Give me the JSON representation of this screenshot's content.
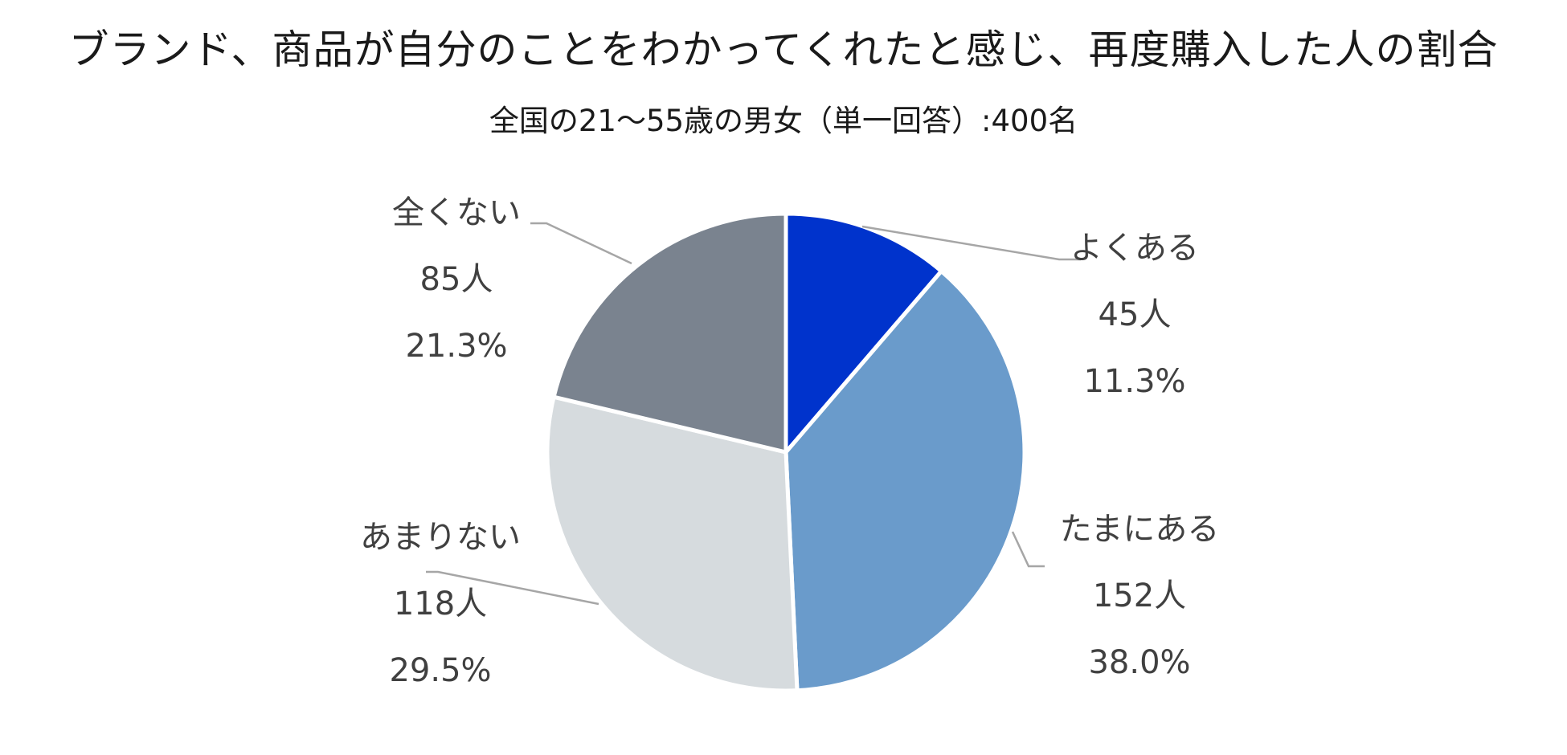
{
  "chart_data": {
    "type": "pie",
    "title": "ブランド、商品が自分のことをわかってくれたと感じ、再度購入した人の割合",
    "subtitle": "全国の21～55歳の男女（単一回答）:400名",
    "slices": [
      {
        "label": "よくある",
        "count": 45,
        "count_text": "45人",
        "percent_text": "11.3%",
        "value": 11.3,
        "color": "#0033cc"
      },
      {
        "label": "たまにある",
        "count": 152,
        "count_text": "152人",
        "percent_text": "38.0%",
        "value": 38.0,
        "color": "#6a9bcb"
      },
      {
        "label": "あまりない",
        "count": 118,
        "count_text": "118人",
        "percent_text": "29.5%",
        "value": 29.5,
        "color": "#d6dbde"
      },
      {
        "label": "全くない",
        "count": 85,
        "count_text": "85人",
        "percent_text": "21.3%",
        "value": 21.3,
        "color": "#7a838f"
      }
    ],
    "start": "12 o'clock",
    "direction": "clockwise",
    "leader_line_color": "#a6a6a6"
  }
}
